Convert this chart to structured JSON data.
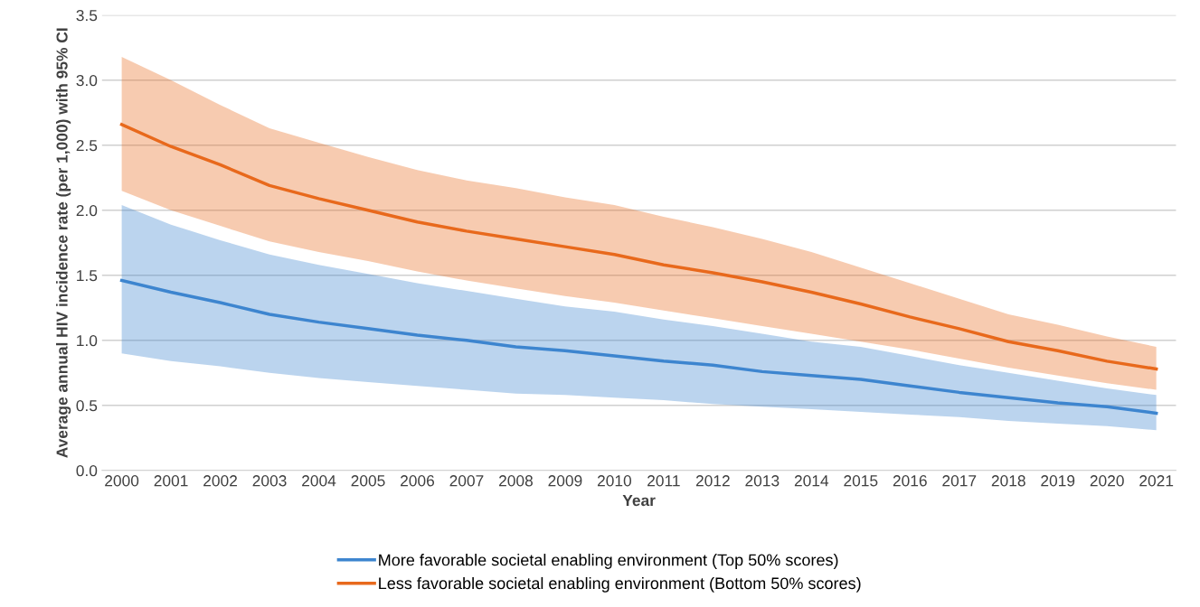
{
  "chart_data": {
    "type": "line",
    "xlabel": "Year",
    "ylabel": "Average annual HIV incidence rate (per 1,000) with 95% CI",
    "categories": [
      "2000",
      "2001",
      "2002",
      "2003",
      "2004",
      "2005",
      "2006",
      "2007",
      "2008",
      "2009",
      "2010",
      "2011",
      "2012",
      "2013",
      "2014",
      "2015",
      "2016",
      "2017",
      "2018",
      "2019",
      "2020",
      "2021"
    ],
    "series": [
      {
        "name": "More favorable societal enabling environment (Top 50% scores)",
        "color": "#3d85cf",
        "values": [
          1.46,
          1.37,
          1.29,
          1.2,
          1.14,
          1.09,
          1.04,
          1.0,
          0.95,
          0.92,
          0.88,
          0.84,
          0.81,
          0.76,
          0.73,
          0.7,
          0.65,
          0.6,
          0.56,
          0.52,
          0.49,
          0.44
        ],
        "upper": [
          2.04,
          1.89,
          1.77,
          1.66,
          1.58,
          1.51,
          1.44,
          1.38,
          1.32,
          1.26,
          1.22,
          1.16,
          1.11,
          1.05,
          0.99,
          0.95,
          0.88,
          0.81,
          0.75,
          0.69,
          0.63,
          0.58
        ],
        "lower": [
          0.9,
          0.84,
          0.8,
          0.75,
          0.71,
          0.68,
          0.65,
          0.62,
          0.59,
          0.58,
          0.56,
          0.54,
          0.51,
          0.49,
          0.47,
          0.45,
          0.43,
          0.41,
          0.38,
          0.36,
          0.34,
          0.31
        ]
      },
      {
        "name": "Less favorable societal enabling environment (Bottom 50% scores)",
        "color": "#e8691c",
        "values": [
          2.66,
          2.49,
          2.35,
          2.19,
          2.09,
          2.0,
          1.91,
          1.84,
          1.78,
          1.72,
          1.66,
          1.58,
          1.52,
          1.45,
          1.37,
          1.28,
          1.18,
          1.09,
          0.99,
          0.92,
          0.84,
          0.78
        ],
        "upper": [
          3.18,
          3.0,
          2.81,
          2.63,
          2.52,
          2.41,
          2.31,
          2.23,
          2.17,
          2.1,
          2.04,
          1.95,
          1.87,
          1.78,
          1.68,
          1.56,
          1.44,
          1.32,
          1.2,
          1.12,
          1.03,
          0.95
        ],
        "lower": [
          2.15,
          2.0,
          1.88,
          1.76,
          1.68,
          1.61,
          1.53,
          1.46,
          1.4,
          1.34,
          1.29,
          1.23,
          1.17,
          1.11,
          1.05,
          0.99,
          0.93,
          0.86,
          0.79,
          0.73,
          0.67,
          0.62
        ]
      }
    ],
    "ylim": [
      0,
      3.5
    ],
    "yticks": [
      {
        "value": 0,
        "label": "0.0"
      },
      {
        "value": 0.5,
        "label": "0.5"
      },
      {
        "value": 1,
        "label": "1.0"
      },
      {
        "value": 1.5,
        "label": "1.5"
      },
      {
        "value": 2,
        "label": "2.0"
      },
      {
        "value": 2.5,
        "label": "2.5"
      },
      {
        "value": 3,
        "label": "3.0"
      },
      {
        "value": 3.5,
        "label": "3.5"
      }
    ],
    "grid": "y",
    "legend": "bottom",
    "marker": "none",
    "line_style": "solid"
  }
}
